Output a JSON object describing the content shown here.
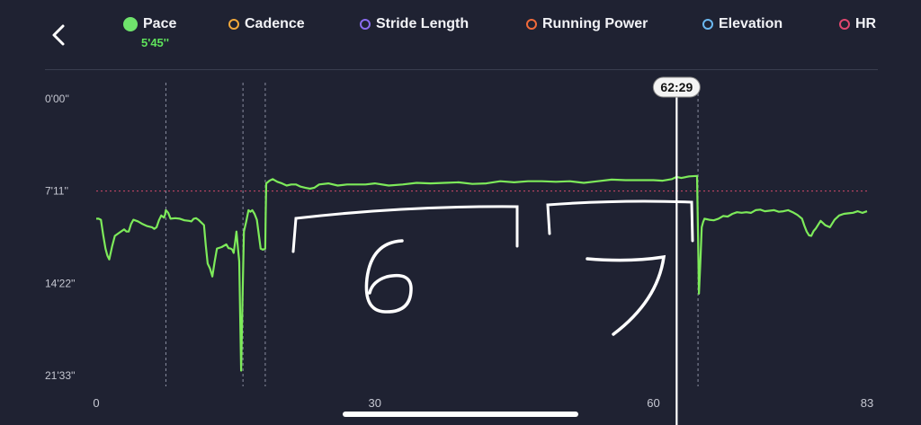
{
  "legend": [
    {
      "name": "Pace",
      "color": "#6fe36c",
      "active": true,
      "sub": "5'45''"
    },
    {
      "name": "Cadence",
      "color": "#f2a93b",
      "active": false
    },
    {
      "name": "Stride Length",
      "color": "#8b6cf0",
      "active": false
    },
    {
      "name": "Running Power",
      "color": "#f06a3a",
      "active": false
    },
    {
      "name": "Elevation",
      "color": "#6bb8f0",
      "active": false
    },
    {
      "name": "HR",
      "color": "#e0476f",
      "active": false
    }
  ],
  "icons": {
    "back": "chevron-left-icon"
  },
  "chart_data": {
    "type": "line",
    "x_range": [
      0,
      83
    ],
    "x_ticks": [
      0,
      30,
      60,
      83
    ],
    "y_ticks": [
      "0'00''",
      "7'11''",
      "14'22''",
      "21'33''"
    ],
    "y_range_seconds": [
      0,
      1293
    ],
    "y_reversed": true,
    "cursor_label": "62:29",
    "cursor_x": 62.5,
    "average_pace_seconds": 431,
    "lap_markers": [
      7.5,
      15.8,
      18.2,
      64.8
    ],
    "handwritten_annotations": [
      "6",
      "7"
    ],
    "series": [
      {
        "color": "#7dea5a",
        "points": [
          [
            0,
            560
          ],
          [
            0.5,
            565
          ],
          [
            1,
            700
          ],
          [
            1.4,
            750
          ],
          [
            2,
            640
          ],
          [
            3,
            610
          ],
          [
            3.5,
            620
          ],
          [
            4,
            565
          ],
          [
            5,
            585
          ],
          [
            6,
            600
          ],
          [
            6.5,
            600
          ],
          [
            7,
            545
          ],
          [
            7.3,
            555
          ],
          [
            7.5,
            520
          ],
          [
            8,
            560
          ],
          [
            9,
            560
          ],
          [
            10,
            570
          ],
          [
            10.5,
            560
          ],
          [
            11,
            565
          ],
          [
            11.6,
            590
          ],
          [
            12,
            770
          ],
          [
            12.5,
            830
          ],
          [
            13,
            700
          ],
          [
            14,
            680
          ],
          [
            14.5,
            700
          ],
          [
            14.8,
            720
          ],
          [
            15.1,
            620
          ],
          [
            15.4,
            760
          ],
          [
            15.6,
            1270
          ],
          [
            15.9,
            620
          ],
          [
            16.4,
            520
          ],
          [
            16.8,
            520
          ],
          [
            17.3,
            565
          ],
          [
            17.7,
            700
          ],
          [
            18.2,
            700
          ],
          [
            18.3,
            395
          ],
          [
            19,
            375
          ],
          [
            20,
            395
          ],
          [
            21,
            400
          ],
          [
            22,
            410
          ],
          [
            23,
            420
          ],
          [
            24,
            400
          ],
          [
            26,
            405
          ],
          [
            28,
            400
          ],
          [
            30,
            395
          ],
          [
            33,
            400
          ],
          [
            36,
            395
          ],
          [
            39,
            390
          ],
          [
            42,
            395
          ],
          [
            45,
            390
          ],
          [
            48,
            385
          ],
          [
            51,
            385
          ],
          [
            54,
            385
          ],
          [
            57,
            380
          ],
          [
            60,
            380
          ],
          [
            62,
            375
          ],
          [
            63,
            370
          ],
          [
            64.7,
            360
          ],
          [
            64.9,
            910
          ],
          [
            65.2,
            600
          ],
          [
            65.5,
            560
          ],
          [
            66,
            565
          ],
          [
            67,
            560
          ],
          [
            68,
            550
          ],
          [
            69,
            530
          ],
          [
            70,
            530
          ],
          [
            71,
            520
          ],
          [
            72,
            525
          ],
          [
            73,
            520
          ],
          [
            74,
            525
          ],
          [
            75,
            530
          ],
          [
            76,
            560
          ],
          [
            76.5,
            620
          ],
          [
            77,
            640
          ],
          [
            77.5,
            605
          ],
          [
            78,
            570
          ],
          [
            79,
            600
          ],
          [
            80,
            545
          ],
          [
            81,
            535
          ],
          [
            82,
            525
          ],
          [
            83,
            525
          ]
        ]
      }
    ]
  }
}
